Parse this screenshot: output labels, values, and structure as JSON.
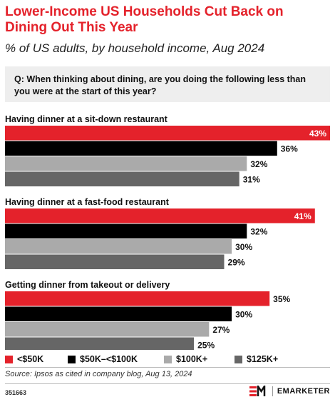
{
  "header": {
    "title": "Lower-Income US Households Cut Back on Dining Out This Year",
    "subtitle": "% of US adults, by household income, Aug 2024",
    "question": "Q: When thinking about dining, are you doing the following less than you were at the start of this year?"
  },
  "chart_data": {
    "type": "bar",
    "orientation": "horizontal",
    "categories": [
      "Having dinner at a sit-down restaurant",
      "Having dinner at a fast-food restaurant",
      "Getting dinner from takeout or delivery"
    ],
    "series": [
      {
        "name": "<$50K",
        "color": "#e4222b",
        "values": [
          43,
          41,
          35
        ],
        "labels": [
          "43%",
          "41%",
          "35%"
        ]
      },
      {
        "name": "$50K–<$100K",
        "color": "#000000",
        "values": [
          36,
          32,
          30
        ],
        "labels": [
          "36%",
          "32%",
          "30%"
        ]
      },
      {
        "name": "$100K+",
        "color": "#aaaaaa",
        "values": [
          32,
          30,
          27
        ],
        "labels": [
          "32%",
          "30%",
          "27%"
        ]
      },
      {
        "name": "$125K+",
        "color": "#666666",
        "values": [
          31,
          29,
          25
        ],
        "labels": [
          "31%",
          "29%",
          "25%"
        ]
      }
    ],
    "xlim": [
      0,
      43
    ],
    "grid": false,
    "legend_position": "bottom"
  },
  "footer": {
    "source": "Source: Ipsos as cited in company blog, Aug 13, 2024",
    "chart_id": "351663",
    "brand": "EMARKETER"
  }
}
